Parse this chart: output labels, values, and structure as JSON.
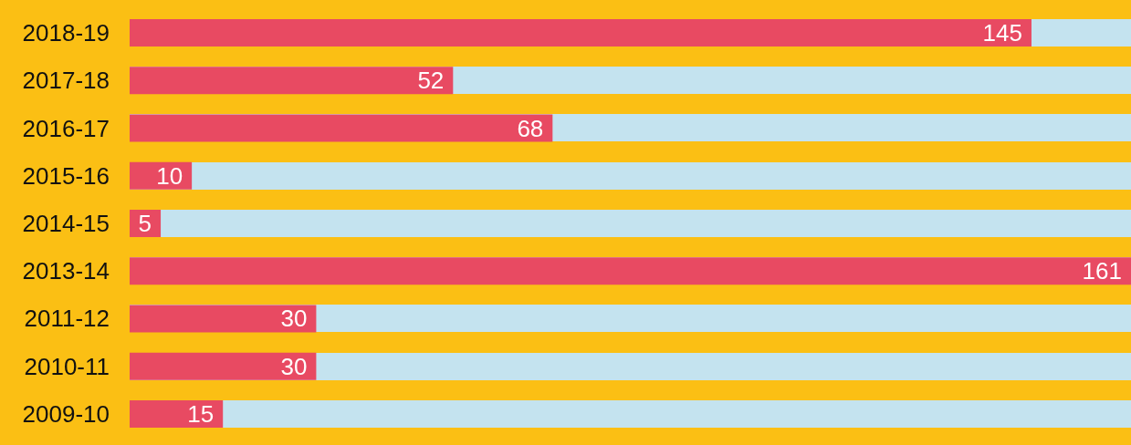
{
  "chart_data": {
    "type": "bar",
    "orientation": "horizontal",
    "categories": [
      "2018-19",
      "2017-18",
      "2016-17",
      "2015-16",
      "2014-15",
      "2013-14",
      "2011-12",
      "2010-11",
      "2009-10"
    ],
    "values": [
      145,
      52,
      68,
      10,
      5,
      161,
      30,
      30,
      15
    ],
    "color": "#e84a62",
    "data_labels": true
  }
}
